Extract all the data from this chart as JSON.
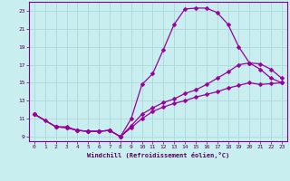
{
  "xlabel": "Windchill (Refroidissement éolien,°C)",
  "background_color": "#c8eef0",
  "grid_color": "#b0d8da",
  "line_color": "#990099",
  "xlim": [
    -0.5,
    23.5
  ],
  "ylim": [
    8.5,
    24.0
  ],
  "xticks": [
    0,
    1,
    2,
    3,
    4,
    5,
    6,
    7,
    8,
    9,
    10,
    11,
    12,
    13,
    14,
    15,
    16,
    17,
    18,
    19,
    20,
    21,
    22,
    23
  ],
  "yticks": [
    9,
    11,
    13,
    15,
    17,
    19,
    21,
    23
  ],
  "line1_x": [
    0,
    1,
    2,
    3,
    4,
    5,
    6,
    7,
    8,
    9,
    10,
    11,
    12,
    13,
    14,
    15,
    16,
    17,
    18,
    19,
    20,
    21,
    22,
    23
  ],
  "line1_y": [
    11.5,
    10.8,
    10.1,
    10.1,
    9.7,
    9.6,
    9.6,
    9.7,
    9.0,
    11.0,
    14.8,
    16.0,
    18.7,
    21.5,
    23.2,
    23.3,
    23.3,
    22.8,
    21.5,
    19.0,
    17.2,
    16.5,
    15.5,
    15.0
  ],
  "line2_x": [
    0,
    2,
    3,
    4,
    5,
    6,
    7,
    8,
    9,
    10,
    11,
    12,
    13,
    14,
    15,
    16,
    17,
    18,
    19,
    20,
    21,
    22,
    23
  ],
  "line2_y": [
    11.5,
    10.1,
    10.0,
    9.7,
    9.6,
    9.6,
    9.7,
    9.0,
    10.2,
    11.5,
    12.2,
    12.8,
    13.2,
    13.8,
    14.2,
    14.8,
    15.5,
    16.2,
    17.0,
    17.2,
    17.1,
    16.5,
    15.5
  ],
  "line3_x": [
    0,
    2,
    3,
    4,
    5,
    6,
    7,
    8,
    9,
    10,
    11,
    12,
    13,
    14,
    15,
    16,
    17,
    18,
    19,
    20,
    21,
    22,
    23
  ],
  "line3_y": [
    11.5,
    10.1,
    10.0,
    9.7,
    9.6,
    9.6,
    9.7,
    9.0,
    10.0,
    11.0,
    11.8,
    12.3,
    12.7,
    13.0,
    13.4,
    13.7,
    14.0,
    14.4,
    14.7,
    15.0,
    14.8,
    14.9,
    15.0
  ]
}
